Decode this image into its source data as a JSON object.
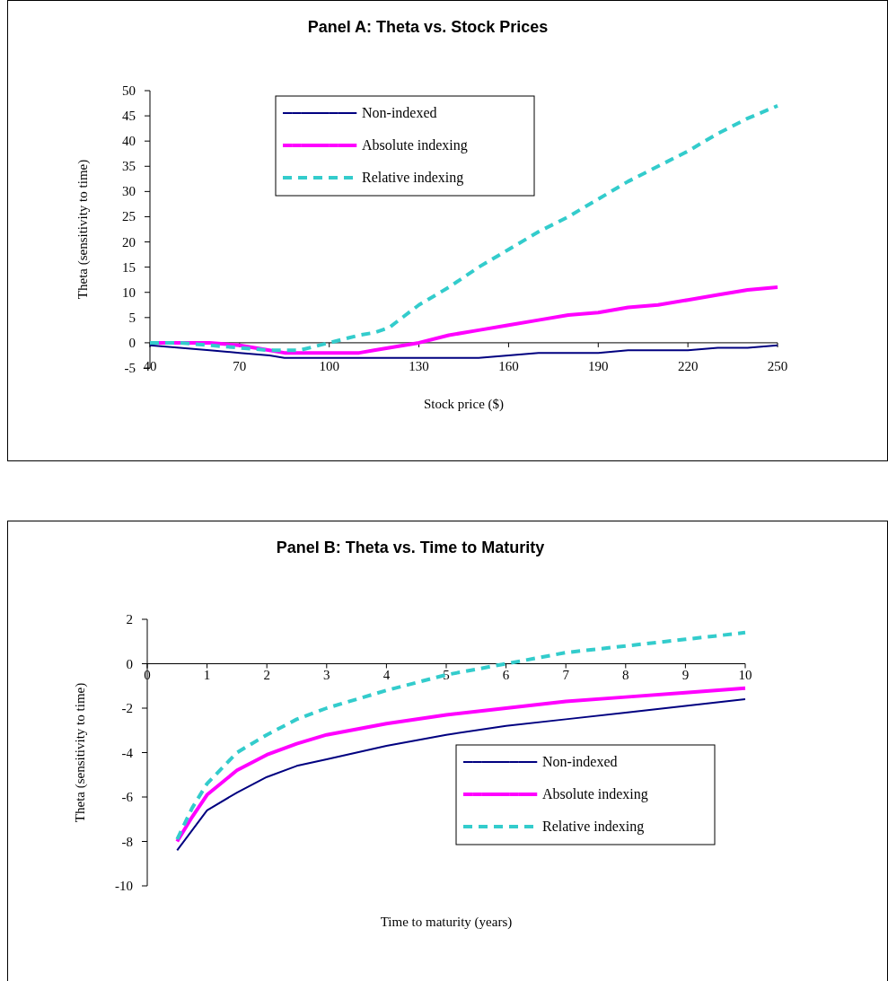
{
  "chart_data": [
    {
      "type": "line",
      "title": "Panel A: Theta vs. Stock Prices",
      "xlabel": "Stock price ($)",
      "ylabel": "Theta (sensitivity to time)",
      "legend": "top",
      "xlim": [
        40,
        250
      ],
      "xticks": [
        40,
        70,
        100,
        130,
        160,
        190,
        220,
        250
      ],
      "ylim": [
        -5,
        50
      ],
      "yticks": [
        -5,
        0,
        5,
        10,
        15,
        20,
        25,
        30,
        35,
        40,
        45,
        50
      ],
      "x": [
        40,
        50,
        60,
        70,
        80,
        85,
        90,
        100,
        110,
        115,
        120,
        130,
        140,
        150,
        160,
        170,
        180,
        190,
        200,
        210,
        220,
        230,
        240,
        250
      ],
      "series": [
        {
          "name": "Non-indexed",
          "color": "#000080",
          "line_style": "solid",
          "values": [
            -0.5,
            -1,
            -1.5,
            -2,
            -2.5,
            -3,
            -3,
            -3,
            -3,
            -3,
            -3,
            -3,
            -3,
            -3,
            -2.5,
            -2,
            -2,
            -2,
            -1.5,
            -1.5,
            -1.5,
            -1,
            -1,
            -0.5
          ]
        },
        {
          "name": "Absolute indexing",
          "color": "#ff00ff",
          "line_style": "solid",
          "values": [
            0,
            0,
            0,
            -0.5,
            -1.5,
            -2,
            -2,
            -2,
            -2,
            -1.5,
            -1,
            0,
            1.5,
            2.5,
            3.5,
            4.5,
            5.5,
            6,
            7,
            7.5,
            8.5,
            9.5,
            10.5,
            11
          ]
        },
        {
          "name": "Relative indexing",
          "color": "#33cccc",
          "line_style": "dashed",
          "values": [
            0,
            0,
            -0.5,
            -1,
            -1.5,
            -1.5,
            -1.5,
            0,
            1.5,
            2,
            3,
            7.5,
            11,
            15,
            18.5,
            22,
            25,
            28.5,
            32,
            35,
            38,
            41.5,
            44.5,
            47
          ]
        }
      ]
    },
    {
      "type": "line",
      "title": "Panel B: Theta vs. Time to Maturity",
      "xlabel": "Time to maturity (years)",
      "ylabel": "Theta (sensitivity to time)",
      "legend": "bottom right",
      "xlim": [
        0,
        10
      ],
      "xticks": [
        0,
        1,
        2,
        3,
        4,
        5,
        6,
        7,
        8,
        9,
        10
      ],
      "ylim": [
        -10,
        2
      ],
      "yticks": [
        -10,
        -8,
        -6,
        -4,
        -2,
        0,
        2
      ],
      "x": [
        0.5,
        0.75,
        1,
        1.5,
        2,
        2.5,
        3,
        4,
        5,
        6,
        7,
        8,
        9,
        10
      ],
      "series": [
        {
          "name": "Non-indexed",
          "color": "#000080",
          "line_style": "solid",
          "values": [
            -8.4,
            -7.5,
            -6.6,
            -5.8,
            -5.1,
            -4.6,
            -4.3,
            -3.7,
            -3.2,
            -2.8,
            -2.5,
            -2.2,
            -1.9,
            -1.6
          ]
        },
        {
          "name": "Absolute indexing",
          "color": "#ff00ff",
          "line_style": "solid",
          "values": [
            -8,
            -6.9,
            -5.9,
            -4.8,
            -4.1,
            -3.6,
            -3.2,
            -2.7,
            -2.3,
            -2,
            -1.7,
            -1.5,
            -1.3,
            -1.1
          ]
        },
        {
          "name": "Relative indexing",
          "color": "#33cccc",
          "line_style": "dashed",
          "values": [
            -7.9,
            -6.5,
            -5.4,
            -4,
            -3.2,
            -2.5,
            -2,
            -1.2,
            -0.5,
            0,
            0.5,
            0.8,
            1.1,
            1.4
          ]
        }
      ]
    }
  ]
}
